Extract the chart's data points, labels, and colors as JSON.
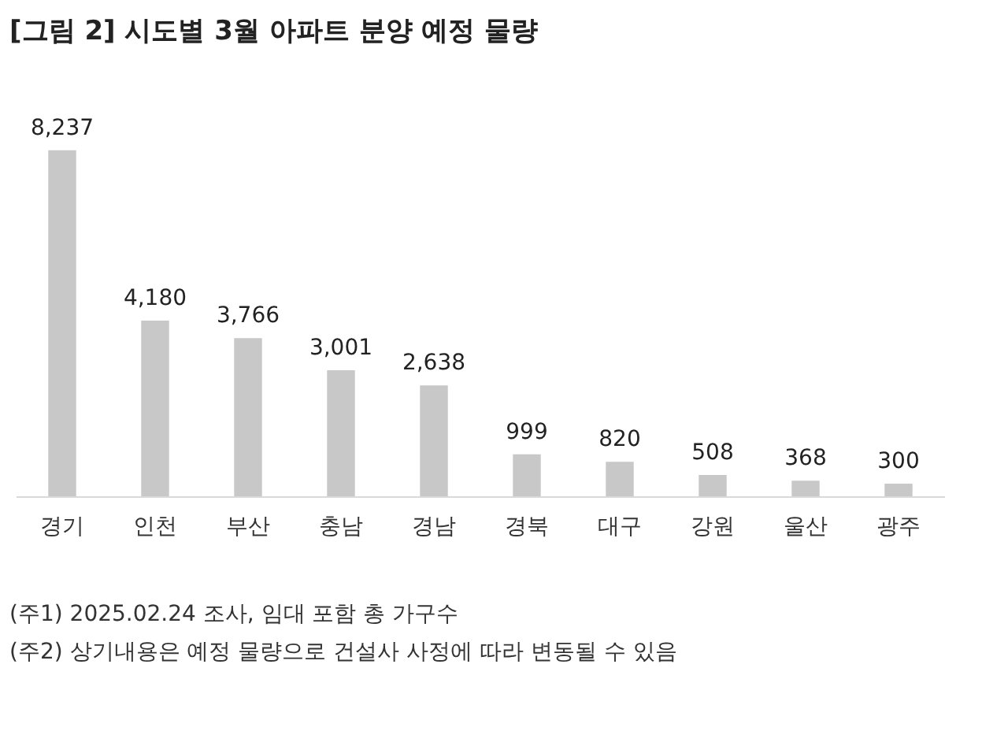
{
  "chart_data": {
    "type": "bar",
    "title": "[그림 2] 시도별 3월 아파트 분양 예정 물량",
    "categories": [
      "경기",
      "인천",
      "부산",
      "충남",
      "경남",
      "경북",
      "대구",
      "강원",
      "울산",
      "광주"
    ],
    "values": [
      8237,
      4180,
      3766,
      3001,
      2638,
      999,
      820,
      508,
      368,
      300
    ],
    "value_labels": [
      "8,237",
      "4,180",
      "3,766",
      "3,001",
      "2,638",
      "999",
      "820",
      "508",
      "368",
      "300"
    ],
    "color": "#c8c8c8",
    "annotations": [
      "(주1) 2025.02.24 조사, 임대 포함 총 가구수",
      "(주2) 상기내용은 예정 물량으로 건설사 사정에 따라 변동될 수 있음"
    ]
  }
}
